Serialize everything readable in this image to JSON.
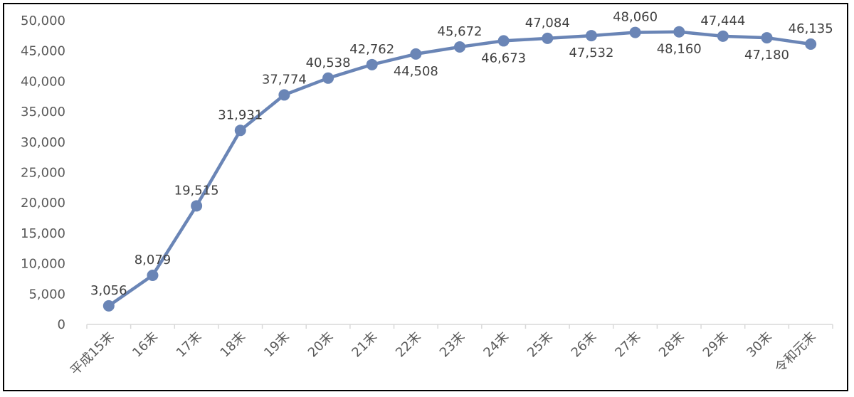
{
  "chart_data": {
    "type": "line",
    "title": "",
    "xlabel": "",
    "ylabel": "",
    "categories": [
      "平成15末",
      "16末",
      "17末",
      "18末",
      "19末",
      "20末",
      "21末",
      "22末",
      "23末",
      "24末",
      "25末",
      "26末",
      "27末",
      "28末",
      "29末",
      "30末",
      "令和元末"
    ],
    "series": [
      {
        "values": [
          3056,
          8079,
          19515,
          31931,
          37774,
          40538,
          42762,
          44508,
          45672,
          46673,
          47084,
          47532,
          48060,
          48160,
          47444,
          47180,
          46135
        ],
        "data_labels": [
          "3,056",
          "8,079",
          "19,515",
          "31,931",
          "37,774",
          "40,538",
          "42,762",
          "44,508",
          "45,672",
          "46,673",
          "47,084",
          "47,532",
          "48,060",
          "48,160",
          "47,444",
          "47,180",
          "46,135"
        ],
        "label_positions": [
          "above",
          "above",
          "above",
          "above",
          "above",
          "above",
          "above",
          "below",
          "above",
          "below",
          "above",
          "below",
          "above",
          "below",
          "above",
          "below",
          "above"
        ]
      }
    ],
    "ylim": [
      0,
      50000
    ],
    "yticks": [
      0,
      5000,
      10000,
      15000,
      20000,
      25000,
      30000,
      35000,
      40000,
      45000,
      50000
    ],
    "ytick_labels": [
      "0",
      "5,000",
      "10,000",
      "15,000",
      "20,000",
      "25,000",
      "30,000",
      "35,000",
      "40,000",
      "45,000",
      "50,000"
    ],
    "grid": false,
    "legend": "none",
    "colors": {
      "line": "#6a85b6",
      "marker": "#6a85b6",
      "axis": "#d9d9d9",
      "text": "#595959"
    }
  }
}
